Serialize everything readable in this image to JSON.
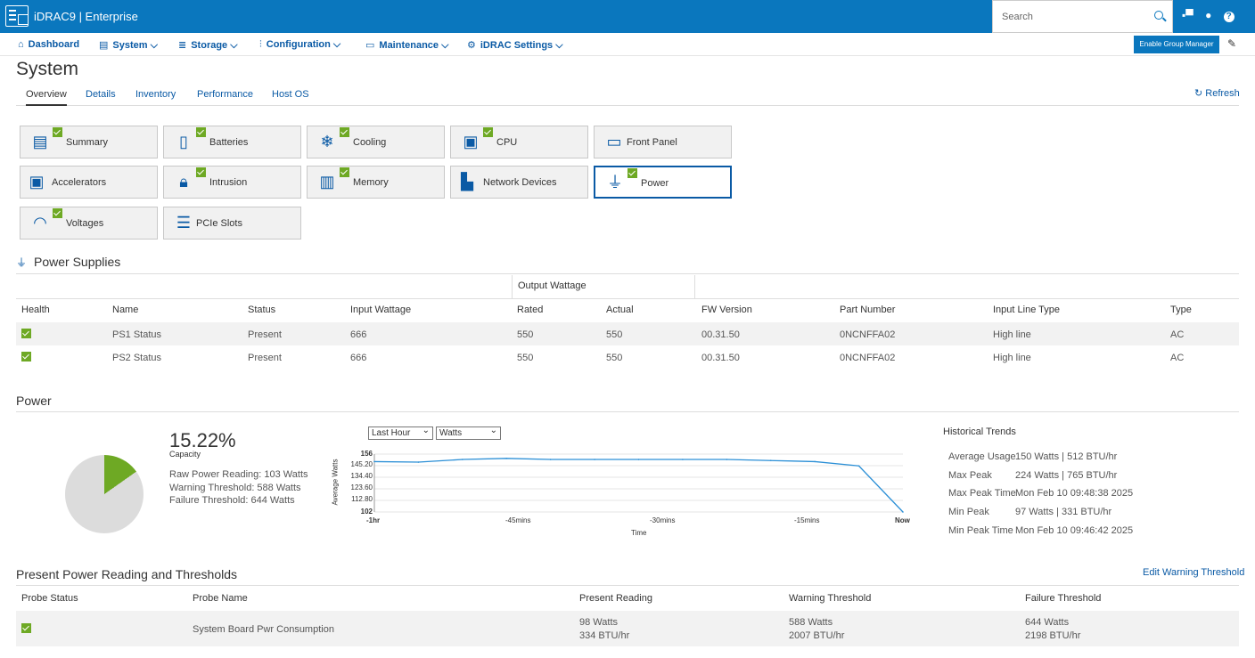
{
  "header": {
    "brand": "iDRAC9 | Enterprise",
    "search_placeholder": "Search"
  },
  "menu": [
    {
      "label": "Dashboard"
    },
    {
      "label": "System"
    },
    {
      "label": "Storage"
    },
    {
      "label": "Configuration"
    },
    {
      "label": "Maintenance"
    },
    {
      "label": "iDRAC Settings"
    }
  ],
  "group_manager_label": "Enable Group Manager",
  "page_title": "System",
  "tabs": [
    "Overview",
    "Details",
    "Inventory",
    "Performance",
    "Host OS"
  ],
  "refresh_label": "Refresh",
  "tiles": [
    {
      "label": "Summary",
      "icon": "summary-icon",
      "health_ok": true
    },
    {
      "label": "Batteries",
      "icon": "battery-icon",
      "health_ok": true
    },
    {
      "label": "Cooling",
      "icon": "snowflake-icon",
      "health_ok": true
    },
    {
      "label": "CPU",
      "icon": "cpu-icon",
      "health_ok": true
    },
    {
      "label": "Front Panel",
      "icon": "front-panel-icon",
      "health_ok": false
    },
    {
      "label": "Accelerators",
      "icon": "accelerator-icon",
      "health_ok": false
    },
    {
      "label": "Intrusion",
      "icon": "lock-icon",
      "health_ok": true
    },
    {
      "label": "Memory",
      "icon": "memory-icon",
      "health_ok": true
    },
    {
      "label": "Network Devices",
      "icon": "network-icon",
      "health_ok": false
    },
    {
      "label": "Power",
      "icon": "plug-icon",
      "health_ok": true
    },
    {
      "label": "Voltages",
      "icon": "gauge-icon",
      "health_ok": true
    },
    {
      "label": "PCIe Slots",
      "icon": "pcie-icon",
      "health_ok": false
    }
  ],
  "power_supplies": {
    "title": "Power Supplies",
    "group_header": "Output Wattage",
    "columns": [
      "Health",
      "Name",
      "Status",
      "Input Wattage",
      "Rated",
      "Actual",
      "FW Version",
      "Part Number",
      "Input Line Type",
      "Type"
    ],
    "rows": [
      [
        "ok",
        "PS1 Status",
        "Present",
        "666",
        "550",
        "550",
        "00.31.50",
        "0NCNFFA02",
        "High line",
        "AC"
      ],
      [
        "ok",
        "PS2 Status",
        "Present",
        "666",
        "550",
        "550",
        "00.31.50",
        "0NCNFFA02",
        "High line",
        "AC"
      ]
    ]
  },
  "power": {
    "title": "Power",
    "capacity_pct": "15.22%",
    "capacity_value": 15.22,
    "capacity_label": "Capacity",
    "raw_reading": "Raw Power Reading: 103 Watts",
    "warning": "Warning Threshold: 588 Watts",
    "failure": "Failure Threshold: 644 Watts",
    "range_select": "Last Hour",
    "unit_select": "Watts",
    "colors": {
      "used": "#6ea924",
      "free": "#dcdcdc",
      "line": "#2b8fd6"
    }
  },
  "chart_data": {
    "type": "line",
    "ylabel": "Average Watts",
    "xlabel": "Time",
    "x_tick_labels": [
      "-1hr",
      "-45mins",
      "-30mins",
      "-15mins",
      "Now"
    ],
    "y_tick_labels": [
      "156",
      "145.20",
      "134.40",
      "123.60",
      "112.80",
      "102"
    ],
    "ylim": [
      102,
      156
    ],
    "x": [
      -60,
      -55,
      -50,
      -45,
      -40,
      -35,
      -30,
      -25,
      -20,
      -15,
      -10,
      -5,
      0
    ],
    "series": [
      {
        "values": [
          149,
          148.5,
          151,
          152,
          151,
          151,
          151,
          151,
          151,
          150,
          149,
          145,
          102
        ]
      }
    ]
  },
  "historical_trends": {
    "title": "Historical Trends",
    "items": [
      {
        "label": "Average Usage",
        "value": "150 Watts | 512 BTU/hr"
      },
      {
        "label": "Max Peak",
        "value": "224 Watts | 765 BTU/hr"
      },
      {
        "label": "Max Peak Time",
        "value": "Mon Feb 10 09:48:38 2025"
      },
      {
        "label": "Min Peak",
        "value": "97 Watts | 331 BTU/hr"
      },
      {
        "label": "Min Peak Time",
        "value": "Mon Feb 10 09:46:42 2025"
      }
    ]
  },
  "thresholds": {
    "title": "Present Power Reading and Thresholds",
    "edit_label": "Edit Warning Threshold",
    "columns": [
      "Probe Status",
      "Probe Name",
      "Present Reading",
      "Warning Threshold",
      "Failure Threshold"
    ],
    "row": {
      "name": "System Board Pwr Consumption",
      "present_w": "98 Watts",
      "present_btu": "334 BTU/hr",
      "warn_w": "588 Watts",
      "warn_btu": "2007 BTU/hr",
      "fail_w": "644 Watts",
      "fail_btu": "2198 BTU/hr"
    }
  }
}
